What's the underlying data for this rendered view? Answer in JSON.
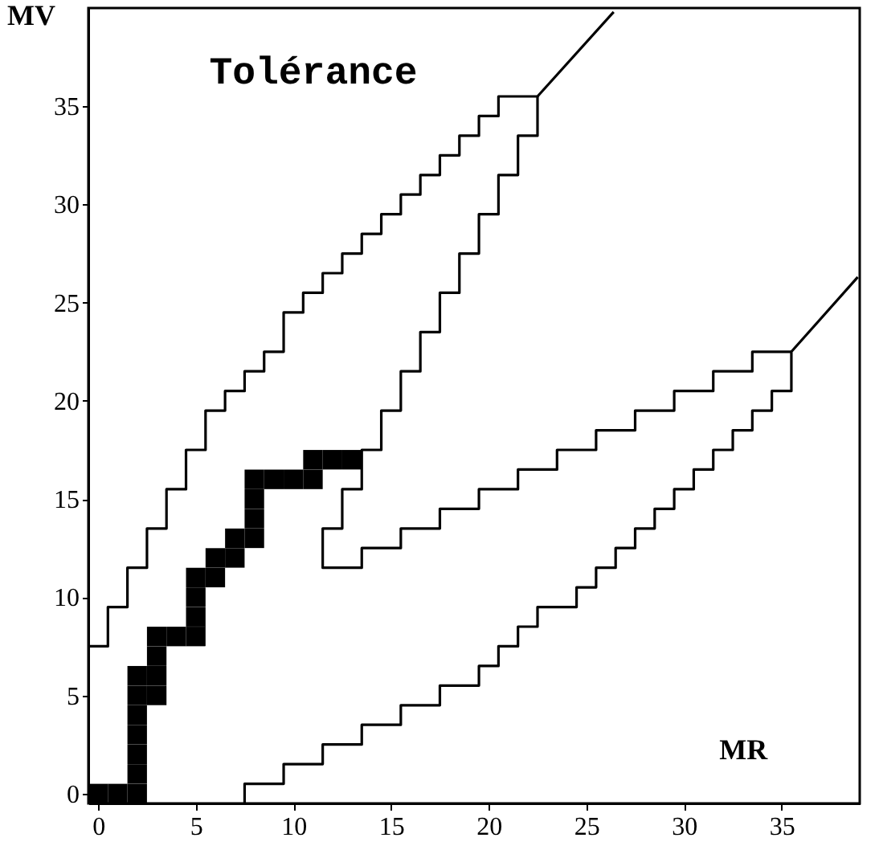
{
  "chart_data": {
    "type": "line",
    "xlabel": "MR",
    "ylabel": "MV",
    "annotations": [
      "Tolérance"
    ],
    "xlim": [
      -0.5,
      39
    ],
    "ylim": [
      -0.5,
      40
    ],
    "xticks": [
      0,
      5,
      10,
      15,
      20,
      25,
      30,
      35
    ],
    "yticks": [
      0,
      5,
      10,
      15,
      20,
      25,
      30,
      35
    ],
    "series": [
      {
        "color": "#000000",
        "x": [
          -0.5,
          0.5,
          0.5,
          1.5,
          1.5,
          2.5,
          2.5,
          3.5,
          3.5,
          4.5,
          4.5,
          5.5,
          5.5,
          6.5,
          6.5,
          7.5,
          7.5,
          8.5,
          8.5,
          9.5,
          9.5,
          10.5,
          10.5,
          11.5,
          11.5,
          12.5,
          12.5,
          13.5,
          13.5,
          14.5,
          14.5,
          15.5,
          15.5,
          16.5,
          16.5,
          17.5,
          17.5,
          18.5,
          18.5,
          19.5,
          19.5,
          20.5,
          20.5,
          22.5,
          26.4
        ],
        "values": [
          7.5,
          7.5,
          9.5,
          9.5,
          11.5,
          11.5,
          13.5,
          13.5,
          15.5,
          15.5,
          17.5,
          17.5,
          19.5,
          19.5,
          20.5,
          20.5,
          21.5,
          21.5,
          22.5,
          22.5,
          24.5,
          24.5,
          25.5,
          25.5,
          26.5,
          26.5,
          27.5,
          27.5,
          28.5,
          28.5,
          29.5,
          29.5,
          30.5,
          30.5,
          31.5,
          31.5,
          32.5,
          32.5,
          33.5,
          33.5,
          34.5,
          34.5,
          35.5,
          35.5,
          39.8
        ]
      },
      {
        "color": "#000000",
        "x": [
          22.5,
          22.5,
          21.5,
          21.5,
          20.5,
          20.5,
          19.5,
          19.5,
          18.5,
          18.5,
          17.5,
          17.5,
          16.5,
          16.5,
          15.5,
          15.5,
          14.5,
          14.5,
          13.5,
          13.5,
          12.5,
          12.5,
          11.5,
          11.5,
          13.5,
          13.5,
          15.5,
          15.5,
          17.5,
          17.5,
          19.5,
          19.5,
          21.5,
          21.5,
          23.5,
          23.5,
          25.5,
          25.5,
          27.5,
          27.5,
          29.5,
          29.5,
          31.5,
          31.5,
          33.5,
          33.5,
          35.5
        ],
        "values": [
          35.5,
          33.5,
          33.5,
          31.5,
          31.5,
          29.5,
          29.5,
          27.5,
          27.5,
          25.5,
          25.5,
          23.5,
          23.5,
          21.5,
          21.5,
          19.5,
          19.5,
          17.5,
          17.5,
          15.5,
          15.5,
          13.5,
          13.5,
          11.5,
          11.5,
          12.5,
          12.5,
          13.5,
          13.5,
          14.5,
          14.5,
          15.5,
          15.5,
          16.5,
          16.5,
          17.5,
          17.5,
          18.5,
          18.5,
          19.5,
          19.5,
          20.5,
          20.5,
          21.5,
          21.5,
          22.5,
          22.5
        ]
      },
      {
        "color": "#000000",
        "x": [
          7.5,
          7.5,
          9.5,
          9.5,
          11.5,
          11.5,
          13.5,
          13.5,
          15.5,
          15.5,
          17.5,
          17.5,
          19.5,
          19.5,
          20.5,
          20.5,
          21.5,
          21.5,
          22.5,
          22.5,
          24.5,
          24.5,
          25.5,
          25.5,
          26.5,
          26.5,
          27.5,
          27.5,
          28.5,
          28.5,
          29.5,
          29.5,
          30.5,
          30.5,
          31.5,
          31.5,
          32.5,
          32.5,
          33.5,
          33.5,
          34.5,
          34.5,
          35.5,
          35.5,
          38.9
        ],
        "values": [
          -0.5,
          0.5,
          0.5,
          1.5,
          1.5,
          2.5,
          2.5,
          3.5,
          3.5,
          4.5,
          4.5,
          5.5,
          5.5,
          6.5,
          6.5,
          7.5,
          7.5,
          8.5,
          8.5,
          9.5,
          9.5,
          10.5,
          10.5,
          11.5,
          11.5,
          12.5,
          12.5,
          13.5,
          13.5,
          14.5,
          14.5,
          15.5,
          15.5,
          16.5,
          16.5,
          17.5,
          17.5,
          18.5,
          18.5,
          19.5,
          19.5,
          20.5,
          20.5,
          22.5,
          26.3
        ]
      },
      {
        "type": "scatter",
        "marker": "square",
        "color": "#000000",
        "x": [
          0,
          1,
          2,
          2,
          2,
          2,
          2,
          2,
          2,
          3,
          3,
          3,
          3,
          4,
          5,
          5,
          5,
          5,
          6,
          6,
          7,
          7,
          8,
          8,
          8,
          8,
          9,
          10,
          11,
          11,
          12,
          13
        ],
        "values": [
          0,
          0,
          0,
          1,
          2,
          3,
          4,
          5,
          6,
          5,
          6,
          7,
          8,
          8,
          8,
          9,
          10,
          11,
          11,
          12,
          12,
          13,
          13,
          14,
          15,
          16,
          16,
          16,
          16,
          17,
          17,
          17
        ]
      }
    ]
  }
}
